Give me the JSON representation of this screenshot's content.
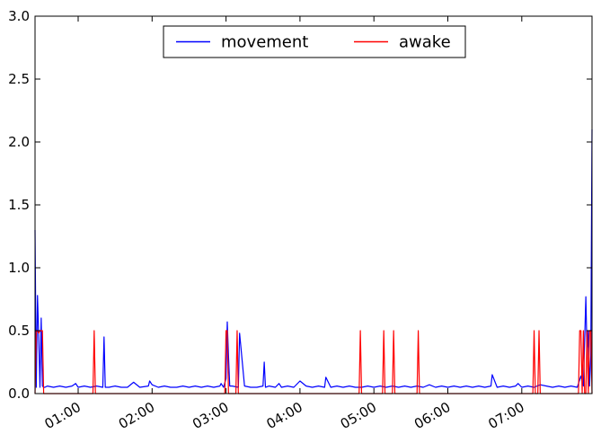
{
  "chart_data": {
    "type": "line",
    "title": "",
    "xlabel": "",
    "ylabel": "",
    "x_unit": "time of night (HH:MM)",
    "xlim": [
      "00:25",
      "07:57"
    ],
    "ylim": [
      0,
      3.0
    ],
    "yticks": [
      0.0,
      0.5,
      1.0,
      1.5,
      2.0,
      2.5,
      3.0
    ],
    "ytick_labels": [
      "0.0",
      "0.5",
      "1.0",
      "1.5",
      "2.0",
      "2.5",
      "3.0"
    ],
    "xticks": [
      "01:00",
      "02:00",
      "03:00",
      "04:00",
      "05:00",
      "06:00",
      "07:00"
    ],
    "grid": false,
    "legend": {
      "position": "top-center",
      "entries": [
        "movement",
        "awake"
      ]
    },
    "series": [
      {
        "name": "movement",
        "color": "#0000ff",
        "x": [
          "00:25",
          "00:26",
          "00:27",
          "00:28",
          "00:29",
          "00:30",
          "00:31",
          "00:32",
          "00:33",
          "00:35",
          "00:40",
          "00:45",
          "00:50",
          "00:55",
          "00:58",
          "01:00",
          "01:05",
          "01:10",
          "01:15",
          "01:20",
          "01:21",
          "01:22",
          "01:25",
          "01:30",
          "01:35",
          "01:40",
          "01:45",
          "01:50",
          "01:57",
          "01:58",
          "02:00",
          "02:05",
          "02:10",
          "02:15",
          "02:20",
          "02:25",
          "02:30",
          "02:35",
          "02:40",
          "02:45",
          "02:50",
          "02:55",
          "02:56",
          "02:58",
          "03:00",
          "03:01",
          "03:02",
          "03:03",
          "03:05",
          "03:10",
          "03:11",
          "03:15",
          "03:20",
          "03:25",
          "03:30",
          "03:31",
          "03:32",
          "03:35",
          "03:40",
          "03:43",
          "03:45",
          "03:50",
          "03:55",
          "04:00",
          "04:05",
          "04:10",
          "04:15",
          "04:20",
          "04:21",
          "04:25",
          "04:30",
          "04:35",
          "04:40",
          "04:45",
          "04:50",
          "04:55",
          "05:00",
          "05:05",
          "05:10",
          "05:15",
          "05:20",
          "05:25",
          "05:30",
          "05:35",
          "05:40",
          "05:45",
          "05:50",
          "05:55",
          "06:00",
          "06:05",
          "06:10",
          "06:15",
          "06:20",
          "06:25",
          "06:30",
          "06:35",
          "06:36",
          "06:40",
          "06:45",
          "06:50",
          "06:55",
          "06:57",
          "07:00",
          "07:05",
          "07:10",
          "07:15",
          "07:20",
          "07:25",
          "07:30",
          "07:35",
          "07:40",
          "07:45",
          "07:48",
          "07:50",
          "07:52",
          "07:53",
          "07:54",
          "07:55",
          "07:56",
          "07:57"
        ],
        "y": [
          1.3,
          0.05,
          0.78,
          0.45,
          0.05,
          0.6,
          0.06,
          0.05,
          0.05,
          0.06,
          0.05,
          0.06,
          0.05,
          0.06,
          0.08,
          0.05,
          0.06,
          0.05,
          0.06,
          0.05,
          0.45,
          0.05,
          0.05,
          0.06,
          0.05,
          0.05,
          0.09,
          0.05,
          0.06,
          0.1,
          0.07,
          0.05,
          0.06,
          0.05,
          0.05,
          0.06,
          0.05,
          0.06,
          0.05,
          0.06,
          0.05,
          0.06,
          0.08,
          0.05,
          0.12,
          0.57,
          0.3,
          0.06,
          0.06,
          0.05,
          0.48,
          0.06,
          0.05,
          0.05,
          0.06,
          0.25,
          0.05,
          0.06,
          0.05,
          0.08,
          0.05,
          0.06,
          0.05,
          0.1,
          0.06,
          0.05,
          0.06,
          0.05,
          0.13,
          0.05,
          0.06,
          0.05,
          0.06,
          0.05,
          0.05,
          0.06,
          0.05,
          0.06,
          0.05,
          0.06,
          0.05,
          0.06,
          0.05,
          0.06,
          0.05,
          0.07,
          0.05,
          0.06,
          0.05,
          0.06,
          0.05,
          0.06,
          0.05,
          0.06,
          0.05,
          0.06,
          0.15,
          0.05,
          0.06,
          0.05,
          0.06,
          0.08,
          0.05,
          0.06,
          0.05,
          0.07,
          0.06,
          0.05,
          0.06,
          0.05,
          0.06,
          0.05,
          0.14,
          0.06,
          0.77,
          0.3,
          0.5,
          0.06,
          0.3,
          2.1
        ]
      },
      {
        "name": "awake",
        "color": "#ff0000",
        "x": [
          "00:25",
          "00:26",
          "00:27",
          "00:28",
          "00:29",
          "00:30",
          "00:31",
          "00:32",
          "00:33",
          "01:12",
          "01:13",
          "01:14",
          "02:59",
          "03:00",
          "03:01",
          "03:02",
          "03:03",
          "03:08",
          "03:09",
          "03:10",
          "04:48",
          "04:49",
          "04:50",
          "05:07",
          "05:08",
          "05:09",
          "05:15",
          "05:16",
          "05:17",
          "05:35",
          "05:36",
          "05:37",
          "07:09",
          "07:10",
          "07:11",
          "07:13",
          "07:14",
          "07:15",
          "07:46",
          "07:47",
          "07:48",
          "07:49",
          "07:50",
          "07:51",
          "07:52",
          "07:53",
          "07:54",
          "07:55",
          "07:56",
          "07:57"
        ],
        "y": [
          0,
          0.5,
          0.5,
          0.48,
          0.5,
          0.5,
          0.5,
          0,
          0,
          0,
          0.5,
          0,
          0,
          0.5,
          0.5,
          0,
          0,
          0,
          0.5,
          0,
          0,
          0.5,
          0,
          0,
          0.5,
          0,
          0,
          0.5,
          0,
          0,
          0.5,
          0,
          0,
          0.5,
          0,
          0,
          0.5,
          0,
          0,
          0.5,
          0.5,
          0,
          0.5,
          0,
          0,
          0.5,
          0,
          0.5,
          0.5,
          0
        ]
      }
    ]
  }
}
